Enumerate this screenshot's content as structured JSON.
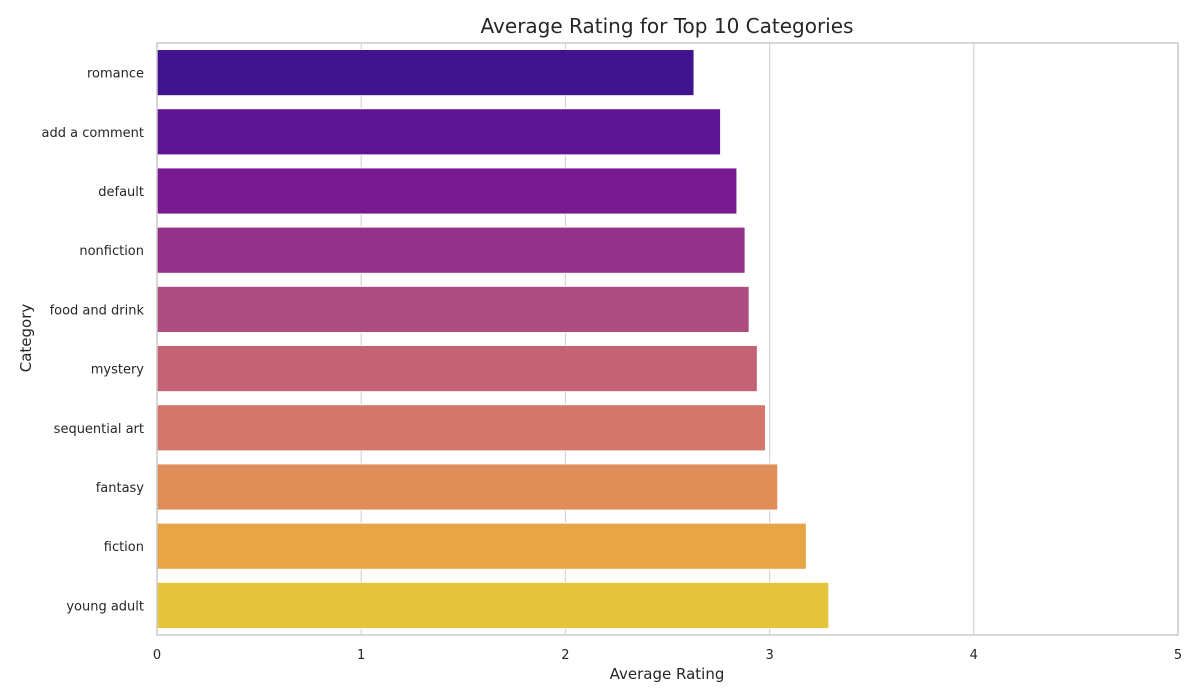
{
  "chart_data": {
    "type": "bar",
    "orientation": "horizontal",
    "title": "Average Rating for Top 10 Categories",
    "xlabel": "Average Rating",
    "ylabel": "Category",
    "xlim": [
      0,
      5
    ],
    "xticks": [
      "0",
      "1",
      "2",
      "3",
      "4",
      "5"
    ],
    "grid": true,
    "categories": [
      "romance",
      "add a comment",
      "default",
      "nonfiction",
      "food and drink",
      "mystery",
      "sequential art",
      "fantasy",
      "fiction",
      "young adult"
    ],
    "values": [
      2.63,
      2.76,
      2.84,
      2.88,
      2.9,
      2.94,
      2.98,
      3.04,
      3.18,
      3.29
    ],
    "colors": [
      "#41148f",
      "#5e1595",
      "#7a1a93",
      "#933087",
      "#ad4d80",
      "#c46276",
      "#d5766c",
      "#df8e58",
      "#e8a544",
      "#e4c43a"
    ]
  }
}
